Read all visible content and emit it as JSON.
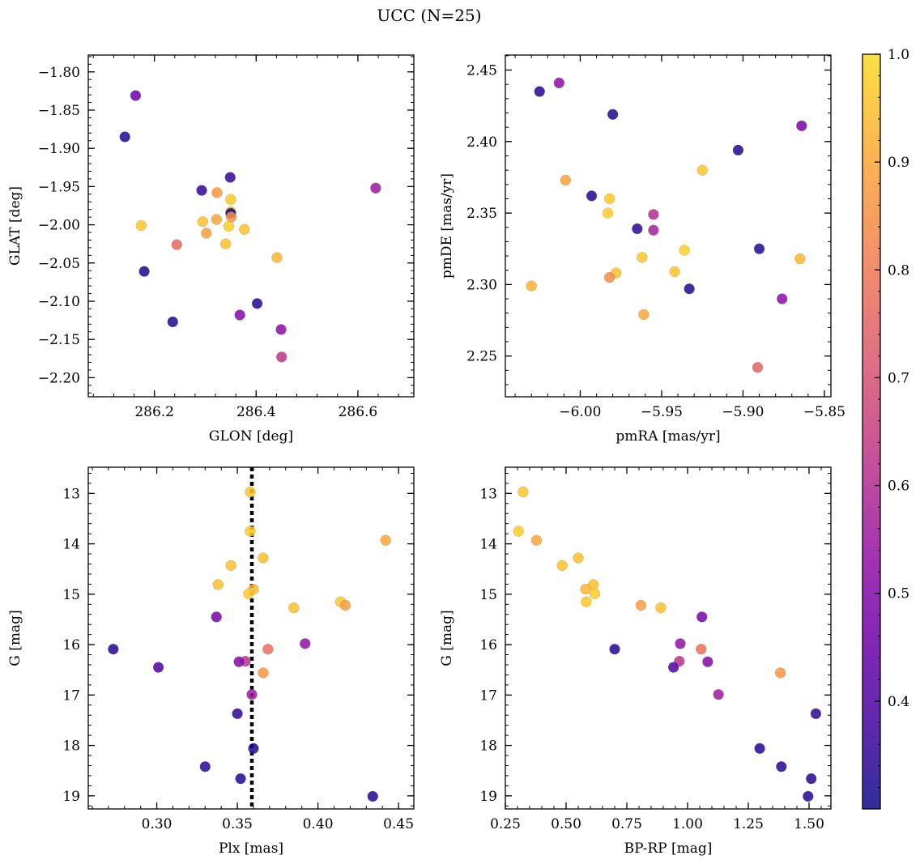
{
  "figure": {
    "title": "UCC (N=25)",
    "colorbar": {
      "range": [
        0.3,
        1.0
      ],
      "ticks": [
        0.4,
        0.5,
        0.6,
        0.7,
        0.8,
        0.9,
        1.0
      ],
      "tick_labels": [
        "0.4",
        "0.5",
        "0.6",
        "0.7",
        "0.8",
        "0.9",
        "1.0"
      ],
      "colormap": "plasma",
      "colormap_clip": "0 to 0.93",
      "marker_alpha": 0.85
    }
  },
  "chart_data": [
    {
      "id": "glon-glat",
      "type": "scatter",
      "xlabel": "GLON [deg]",
      "ylabel": "GLAT [deg]",
      "xlim": [
        286.07,
        286.71
      ],
      "ylim": [
        -2.225,
        -1.778
      ],
      "y_inverted": false,
      "xticks": [
        286.2,
        286.4,
        286.6
      ],
      "xtick_labels": [
        "286.2",
        "286.4",
        "286.6"
      ],
      "yticks": [
        -2.2,
        -2.15,
        -2.1,
        -2.05,
        -2.0,
        -1.95,
        -1.9,
        -1.85,
        -1.8
      ],
      "ytick_labels": [
        "−2.20",
        "−2.15",
        "−2.10",
        "−2.05",
        "−2.00",
        "−1.95",
        "−1.90",
        "−1.85",
        "−1.80"
      ],
      "points": [
        {
          "x": 286.163,
          "y": -1.831,
          "c": 0.45
        },
        {
          "x": 286.142,
          "y": -1.885,
          "c": 0.33
        },
        {
          "x": 286.293,
          "y": -1.955,
          "c": 0.35
        },
        {
          "x": 286.349,
          "y": -1.938,
          "c": 0.36
        },
        {
          "x": 286.635,
          "y": -1.952,
          "c": 0.55
        },
        {
          "x": 286.323,
          "y": -1.958,
          "c": 0.87
        },
        {
          "x": 286.35,
          "y": -1.967,
          "c": 0.97
        },
        {
          "x": 286.35,
          "y": -1.983,
          "c": 0.95
        },
        {
          "x": 286.35,
          "y": -1.985,
          "c": 0.3
        },
        {
          "x": 286.351,
          "y": -1.99,
          "c": 0.86
        },
        {
          "x": 286.322,
          "y": -1.993,
          "c": 0.9
        },
        {
          "x": 286.295,
          "y": -1.996,
          "c": 0.95
        },
        {
          "x": 286.174,
          "y": -2.001,
          "c": 0.96
        },
        {
          "x": 286.346,
          "y": -2.002,
          "c": 0.97
        },
        {
          "x": 286.377,
          "y": -2.006,
          "c": 0.95
        },
        {
          "x": 286.302,
          "y": -2.011,
          "c": 0.88
        },
        {
          "x": 286.244,
          "y": -2.026,
          "c": 0.76
        },
        {
          "x": 286.34,
          "y": -2.025,
          "c": 0.95
        },
        {
          "x": 286.441,
          "y": -2.043,
          "c": 0.93
        },
        {
          "x": 286.18,
          "y": -2.061,
          "c": 0.32
        },
        {
          "x": 286.402,
          "y": -2.103,
          "c": 0.33
        },
        {
          "x": 286.368,
          "y": -2.118,
          "c": 0.5
        },
        {
          "x": 286.236,
          "y": -2.127,
          "c": 0.32
        },
        {
          "x": 286.449,
          "y": -2.137,
          "c": 0.52
        },
        {
          "x": 286.45,
          "y": -2.173,
          "c": 0.63
        }
      ]
    },
    {
      "id": "pmra-pmde",
      "type": "scatter",
      "xlabel": "pmRA [mas/yr]",
      "ylabel": "pmDE [mas/yr]",
      "xlim": [
        -6.046,
        -5.846
      ],
      "ylim": [
        2.2215,
        2.4605
      ],
      "y_inverted": false,
      "xticks": [
        -6.0,
        -5.95,
        -5.9,
        -5.85
      ],
      "xtick_labels": [
        "−6.00",
        "−5.95",
        "−5.90",
        "−5.85"
      ],
      "yticks": [
        2.25,
        2.3,
        2.35,
        2.4,
        2.45
      ],
      "ytick_labels": [
        "2.25",
        "2.30",
        "2.35",
        "2.40",
        "2.45"
      ],
      "points": [
        {
          "x": -6.013,
          "y": 2.441,
          "c": 0.52
        },
        {
          "x": -6.025,
          "y": 2.435,
          "c": 0.33
        },
        {
          "x": -5.98,
          "y": 2.419,
          "c": 0.32
        },
        {
          "x": -5.864,
          "y": 2.411,
          "c": 0.48
        },
        {
          "x": -5.903,
          "y": 2.394,
          "c": 0.33
        },
        {
          "x": -5.925,
          "y": 2.38,
          "c": 0.96
        },
        {
          "x": -6.009,
          "y": 2.373,
          "c": 0.89
        },
        {
          "x": -5.993,
          "y": 2.362,
          "c": 0.33
        },
        {
          "x": -5.982,
          "y": 2.36,
          "c": 0.96
        },
        {
          "x": -5.983,
          "y": 2.35,
          "c": 0.97
        },
        {
          "x": -5.955,
          "y": 2.349,
          "c": 0.61
        },
        {
          "x": -5.965,
          "y": 2.339,
          "c": 0.34
        },
        {
          "x": -5.955,
          "y": 2.338,
          "c": 0.57
        },
        {
          "x": -5.89,
          "y": 2.325,
          "c": 0.33
        },
        {
          "x": -5.936,
          "y": 2.324,
          "c": 0.98
        },
        {
          "x": -5.962,
          "y": 2.319,
          "c": 0.96
        },
        {
          "x": -5.865,
          "y": 2.318,
          "c": 0.93
        },
        {
          "x": -5.942,
          "y": 2.309,
          "c": 0.96
        },
        {
          "x": -5.978,
          "y": 2.308,
          "c": 0.95
        },
        {
          "x": -5.982,
          "y": 2.305,
          "c": 0.84
        },
        {
          "x": -6.03,
          "y": 2.299,
          "c": 0.92
        },
        {
          "x": -5.933,
          "y": 2.297,
          "c": 0.33
        },
        {
          "x": -5.876,
          "y": 2.29,
          "c": 0.52
        },
        {
          "x": -5.961,
          "y": 2.279,
          "c": 0.9
        },
        {
          "x": -5.891,
          "y": 2.242,
          "c": 0.75
        }
      ]
    },
    {
      "id": "plx-g",
      "type": "scatter",
      "xlabel": "Plx [mas]",
      "ylabel": "G [mag]",
      "xlim": [
        0.2575,
        0.4595
      ],
      "ylim": [
        12.48,
        19.26
      ],
      "y_inverted": true,
      "vline": {
        "x": 0.359,
        "style": "dotted"
      },
      "xticks": [
        0.3,
        0.35,
        0.4,
        0.45
      ],
      "xtick_labels": [
        "0.30",
        "0.35",
        "0.40",
        "0.45"
      ],
      "yticks": [
        13,
        14,
        15,
        16,
        17,
        18,
        19
      ],
      "ytick_labels": [
        "13",
        "14",
        "15",
        "16",
        "17",
        "18",
        "19"
      ],
      "points": [
        {
          "x": 0.358,
          "y": 12.97,
          "c": 0.96
        },
        {
          "x": 0.358,
          "y": 13.75,
          "c": 0.97
        },
        {
          "x": 0.442,
          "y": 13.93,
          "c": 0.9
        },
        {
          "x": 0.366,
          "y": 14.28,
          "c": 0.95
        },
        {
          "x": 0.346,
          "y": 14.43,
          "c": 0.95
        },
        {
          "x": 0.338,
          "y": 14.81,
          "c": 0.95
        },
        {
          "x": 0.36,
          "y": 14.9,
          "c": 0.93
        },
        {
          "x": 0.357,
          "y": 14.99,
          "c": 0.97
        },
        {
          "x": 0.414,
          "y": 15.15,
          "c": 0.96
        },
        {
          "x": 0.417,
          "y": 15.22,
          "c": 0.88
        },
        {
          "x": 0.385,
          "y": 15.27,
          "c": 0.95
        },
        {
          "x": 0.337,
          "y": 15.45,
          "c": 0.48
        },
        {
          "x": 0.392,
          "y": 15.98,
          "c": 0.53
        },
        {
          "x": 0.273,
          "y": 16.09,
          "c": 0.33
        },
        {
          "x": 0.369,
          "y": 16.09,
          "c": 0.78
        },
        {
          "x": 0.355,
          "y": 16.33,
          "c": 0.62
        },
        {
          "x": 0.351,
          "y": 16.34,
          "c": 0.5
        },
        {
          "x": 0.301,
          "y": 16.45,
          "c": 0.4
        },
        {
          "x": 0.366,
          "y": 16.56,
          "c": 0.87
        },
        {
          "x": 0.359,
          "y": 16.99,
          "c": 0.56
        },
        {
          "x": 0.35,
          "y": 17.37,
          "c": 0.34
        },
        {
          "x": 0.36,
          "y": 18.06,
          "c": 0.33
        },
        {
          "x": 0.33,
          "y": 18.42,
          "c": 0.34
        },
        {
          "x": 0.352,
          "y": 18.66,
          "c": 0.33
        },
        {
          "x": 0.434,
          "y": 19.01,
          "c": 0.33
        }
      ]
    },
    {
      "id": "bprp-g",
      "type": "scatter",
      "xlabel": "BP-RP [mag]",
      "ylabel": "G [mag]",
      "xlim": [
        0.25,
        1.59
      ],
      "ylim": [
        12.48,
        19.26
      ],
      "y_inverted": true,
      "xticks": [
        0.25,
        0.5,
        0.75,
        1.0,
        1.25,
        1.5
      ],
      "xtick_labels": [
        "0.25",
        "0.50",
        "0.75",
        "1.00",
        "1.25",
        "1.50"
      ],
      "yticks": [
        13,
        14,
        15,
        16,
        17,
        18,
        19
      ],
      "ytick_labels": [
        "13",
        "14",
        "15",
        "16",
        "17",
        "18",
        "19"
      ],
      "points": [
        {
          "x": 0.323,
          "y": 12.97,
          "c": 0.96
        },
        {
          "x": 0.304,
          "y": 13.75,
          "c": 0.97
        },
        {
          "x": 0.378,
          "y": 13.93,
          "c": 0.9
        },
        {
          "x": 0.55,
          "y": 14.28,
          "c": 0.95
        },
        {
          "x": 0.484,
          "y": 14.43,
          "c": 0.95
        },
        {
          "x": 0.612,
          "y": 14.81,
          "c": 0.95
        },
        {
          "x": 0.58,
          "y": 14.9,
          "c": 0.93
        },
        {
          "x": 0.618,
          "y": 14.99,
          "c": 0.97
        },
        {
          "x": 0.583,
          "y": 15.15,
          "c": 0.96
        },
        {
          "x": 0.808,
          "y": 15.22,
          "c": 0.88
        },
        {
          "x": 0.89,
          "y": 15.27,
          "c": 0.95
        },
        {
          "x": 1.059,
          "y": 15.45,
          "c": 0.48
        },
        {
          "x": 0.97,
          "y": 15.98,
          "c": 0.53
        },
        {
          "x": 0.7,
          "y": 16.09,
          "c": 0.33
        },
        {
          "x": 1.056,
          "y": 16.09,
          "c": 0.78
        },
        {
          "x": 0.966,
          "y": 16.33,
          "c": 0.62
        },
        {
          "x": 1.083,
          "y": 16.34,
          "c": 0.5
        },
        {
          "x": 0.942,
          "y": 16.45,
          "c": 0.4
        },
        {
          "x": 1.382,
          "y": 16.56,
          "c": 0.87
        },
        {
          "x": 1.127,
          "y": 16.99,
          "c": 0.56
        },
        {
          "x": 1.528,
          "y": 17.37,
          "c": 0.34
        },
        {
          "x": 1.297,
          "y": 18.06,
          "c": 0.33
        },
        {
          "x": 1.386,
          "y": 18.42,
          "c": 0.34
        },
        {
          "x": 1.509,
          "y": 18.66,
          "c": 0.33
        },
        {
          "x": 1.496,
          "y": 19.01,
          "c": 0.33
        }
      ]
    }
  ]
}
